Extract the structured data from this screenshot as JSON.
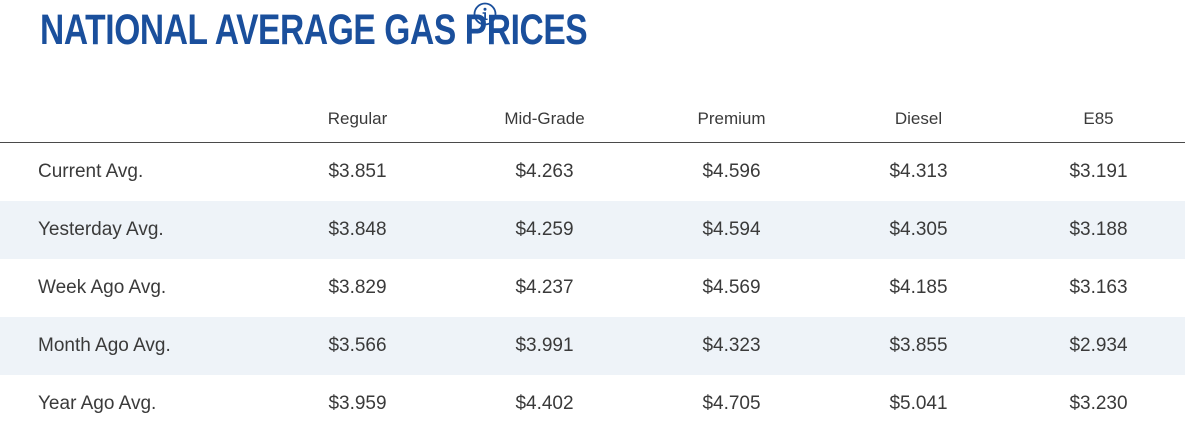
{
  "header": {
    "title": "NATIONAL AVERAGE GAS PRICES",
    "info_icon": "info-circle-icon",
    "title_color": "#1a4f9c"
  },
  "table": {
    "columns": [
      "",
      "Regular",
      "Mid-Grade",
      "Premium",
      "Diesel",
      "E85"
    ],
    "rows": [
      {
        "label": "Current Avg.",
        "values": [
          "$3.851",
          "$4.263",
          "$4.596",
          "$4.313",
          "$3.191"
        ]
      },
      {
        "label": "Yesterday Avg.",
        "values": [
          "$3.848",
          "$4.259",
          "$4.594",
          "$4.305",
          "$3.188"
        ]
      },
      {
        "label": "Week Ago Avg.",
        "values": [
          "$3.829",
          "$4.237",
          "$4.569",
          "$4.185",
          "$3.163"
        ]
      },
      {
        "label": "Month Ago Avg.",
        "values": [
          "$3.566",
          "$3.991",
          "$4.323",
          "$3.855",
          "$2.934"
        ]
      },
      {
        "label": "Year Ago Avg.",
        "values": [
          "$3.959",
          "$4.402",
          "$4.705",
          "$5.041",
          "$3.230"
        ]
      }
    ],
    "stripe_color": "#eef3f8"
  }
}
